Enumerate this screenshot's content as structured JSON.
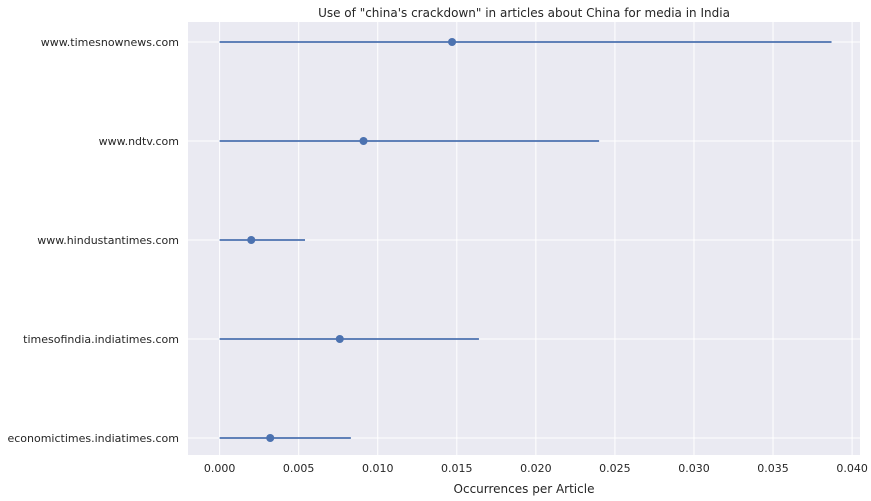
{
  "chart_data": {
    "type": "scatter",
    "title": "Use of \"china's crackdown\" in articles about China for media in India",
    "xlabel": "Occurrences per Article",
    "ylabel": "",
    "xlim": [
      -0.002,
      0.0405
    ],
    "xticks": [
      "0.000",
      "0.005",
      "0.010",
      "0.015",
      "0.020",
      "0.025",
      "0.030",
      "0.035",
      "0.040"
    ],
    "grid": true,
    "categories": [
      "www.timesnownews.com",
      "www.ndtv.com",
      "www.hindustantimes.com",
      "timesofindia.indiatimes.com",
      "economictimes.indiatimes.com"
    ],
    "values": [
      0.0147,
      0.0091,
      0.002,
      0.0076,
      0.0032
    ],
    "lower": [
      0.0,
      0.0,
      0.0,
      0.0,
      0.0
    ],
    "upper": [
      0.0387,
      0.024,
      0.0054,
      0.0164,
      0.0083
    ],
    "colors": {
      "series": "#4c72b0",
      "background": "#eaeaf2",
      "grid": "#ffffff"
    }
  }
}
